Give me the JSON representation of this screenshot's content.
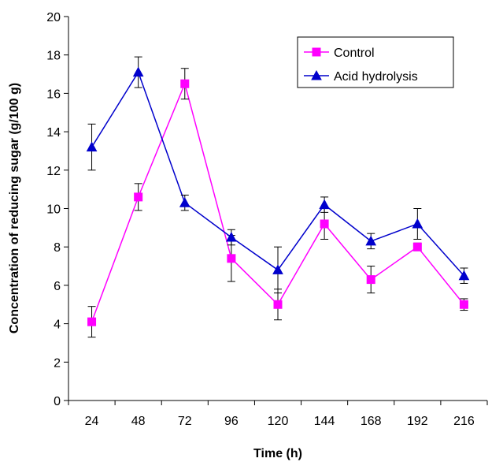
{
  "chart_data": {
    "type": "line",
    "xlabel": "Time (h)",
    "ylabel": "Concentration of reducing sugar (g/100 g)",
    "categories": [
      "24",
      "48",
      "72",
      "96",
      "120",
      "144",
      "168",
      "192",
      "216"
    ],
    "ylim": [
      0,
      20
    ],
    "yticks": [
      0,
      2,
      4,
      6,
      8,
      10,
      12,
      14,
      16,
      18,
      20
    ],
    "grid": false,
    "legend_position": "top-right",
    "series": [
      {
        "name": "Control",
        "color": "#ff00ff",
        "marker": "square",
        "values": [
          4.1,
          10.6,
          16.5,
          7.4,
          5.0,
          9.2,
          6.3,
          8.0,
          5.0
        ],
        "errors": [
          0.8,
          0.7,
          0.8,
          1.2,
          0.8,
          0.8,
          0.7,
          0.2,
          0.3
        ]
      },
      {
        "name": "Acid hydrolysis",
        "color": "#0000cc",
        "marker": "triangle",
        "values": [
          13.2,
          17.1,
          10.3,
          8.5,
          6.8,
          10.2,
          8.3,
          9.2,
          6.5
        ],
        "errors": [
          1.2,
          0.8,
          0.4,
          0.4,
          1.2,
          0.4,
          0.4,
          0.8,
          0.4
        ]
      }
    ]
  }
}
